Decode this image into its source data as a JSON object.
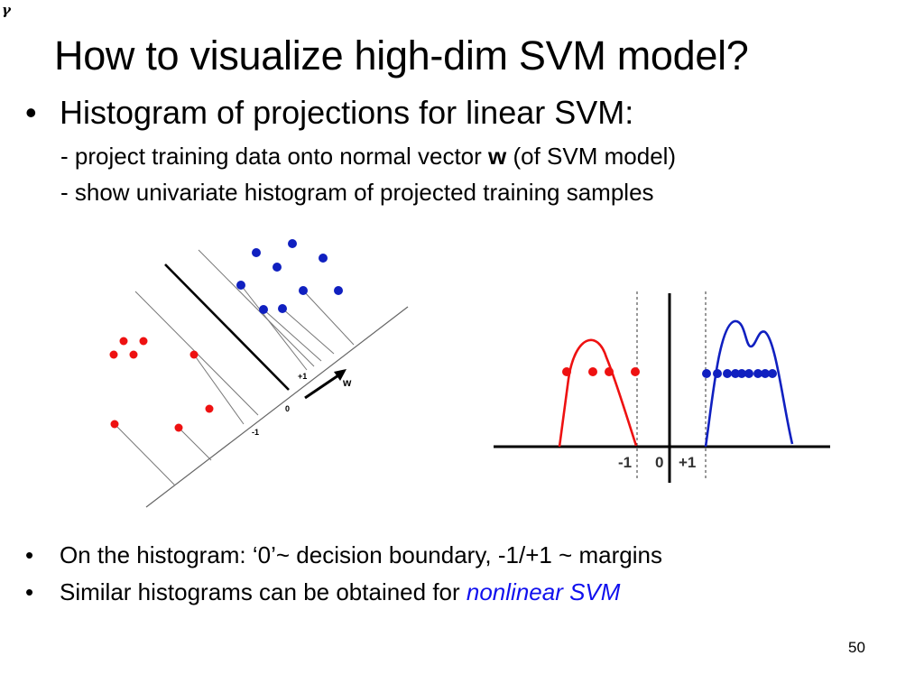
{
  "corner_symbol": "γ",
  "title": "How to visualize high-dim SVM model?",
  "main_bullet": {
    "text": "Histogram of projections for linear SVM:",
    "line1_pre": "- project training data onto normal vector ",
    "line1_bold": "w",
    "line1_post": " (of SVM model)",
    "line2": "- show univariate histogram of projected training samples"
  },
  "bottom_bullets": {
    "b1": "On the histogram: ‘0’~ decision boundary, -1/+1 ~ margins",
    "b2_pre": "Similar histograms can be obtained for ",
    "b2_link": "nonlinear SVM"
  },
  "left_figure": {
    "labels": {
      "plus1": "+1",
      "zero": "0",
      "minus1": "-1",
      "w": "w"
    }
  },
  "right_figure": {
    "labels": {
      "minus1": "-1",
      "zero": "0",
      "plus1": "+1"
    }
  },
  "colors": {
    "red": "#ee1111",
    "blue": "#1020c0",
    "link": "#1010ee"
  },
  "page_number": "50"
}
